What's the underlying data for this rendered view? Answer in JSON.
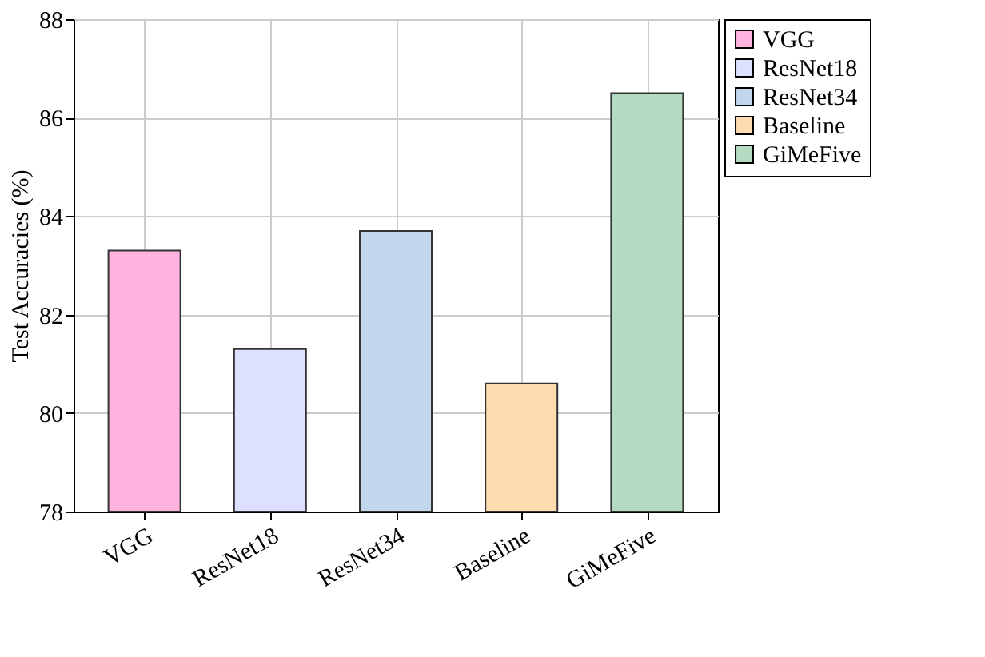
{
  "chart_data": {
    "type": "bar",
    "ylabel": "Test Accuracies (%)",
    "categories": [
      "VGG",
      "ResNet18",
      "ResNet34",
      "Baseline",
      "GiMeFive"
    ],
    "series": [
      {
        "name": "VGG",
        "color": "#ffb3de",
        "values": [
          83.3,
          null,
          null,
          null,
          null
        ]
      },
      {
        "name": "ResNet18",
        "color": "#dde0ff",
        "values": [
          null,
          81.3,
          null,
          null,
          null
        ]
      },
      {
        "name": "ResNet34",
        "color": "#c2d7ec",
        "values": [
          null,
          null,
          83.7,
          null,
          null
        ]
      },
      {
        "name": "Baseline",
        "color": "#ffdcb0",
        "values": [
          null,
          null,
          null,
          80.6,
          null
        ]
      },
      {
        "name": "GiMeFive",
        "color": "#b3dbc4",
        "values": [
          null,
          null,
          null,
          null,
          86.5
        ]
      }
    ],
    "ylim": [
      78,
      88
    ],
    "yticks": [
      78,
      80,
      82,
      84,
      86,
      88
    ],
    "grid": true,
    "legend": "top right"
  }
}
